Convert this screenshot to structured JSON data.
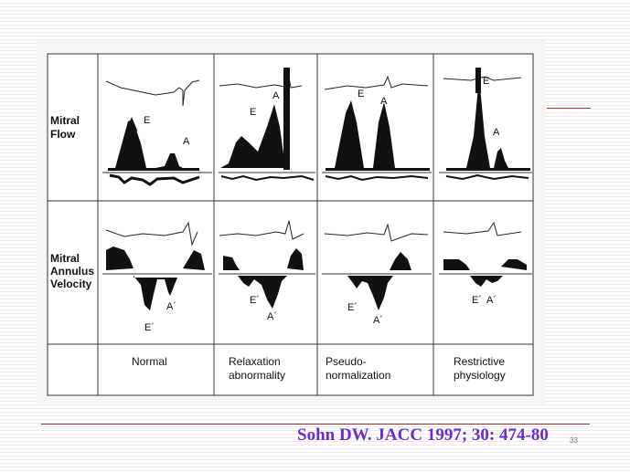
{
  "rows": [
    "Mitral\nFlow",
    "Mitral\nAnnulus\nVelocity"
  ],
  "columns": [
    "Normal",
    "Relaxation\nabnormality",
    "Pseudo-\nnormalization",
    "Restrictive\nphysiology"
  ],
  "flow_labels": {
    "e": "E",
    "a": "A"
  },
  "annulus_labels": {
    "e": "E´",
    "a": "A´"
  },
  "citation": "Sohn DW. JACC 1997; 30: 474-80",
  "page_number": "33",
  "colors": {
    "citation": "#6a2cd0",
    "accent_line": "#a83030",
    "trace": "#111111"
  }
}
